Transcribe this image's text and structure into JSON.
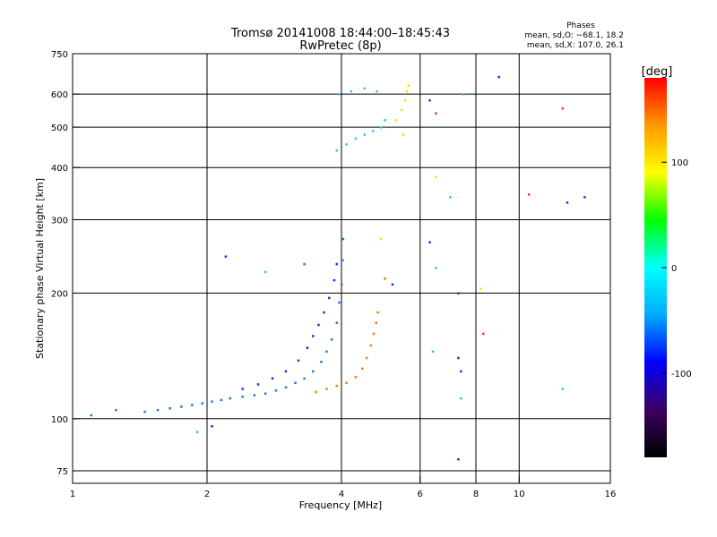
{
  "chart_data": {
    "type": "scatter",
    "title": "Tromsø 20141008 18:44:00–18:45:43",
    "subtitle": "RwPretec (8p)",
    "xlabel": "Frequency [MHz]",
    "ylabel": "Stationary phase Virtual Height [km]",
    "x_scale": "log2",
    "y_scale": "log",
    "xlim": [
      1,
      16
    ],
    "ylim": [
      70,
      750
    ],
    "x_ticks": [
      1,
      2,
      4,
      6,
      8,
      10,
      16
    ],
    "y_ticks": [
      75,
      100,
      200,
      300,
      400,
      500,
      600,
      750
    ],
    "grid": true,
    "stats_header": "Phases",
    "stats_lines": [
      "mean, sd,O: −68.1, 18.2",
      "mean, sd,X: 107.0, 26.1"
    ],
    "colorbar": {
      "label": "[deg]",
      "range": [
        -180,
        180
      ],
      "ticks": [
        100,
        0,
        -100
      ],
      "colors": [
        "#000000",
        "#3c0060",
        "#0000ff",
        "#00aaff",
        "#00ffff",
        "#00ff00",
        "#ffff00",
        "#ff9900",
        "#ff0000"
      ]
    },
    "point_colors": {
      "O_dark": "#1a32d8",
      "O_mid": "#1e78e8",
      "O_light": "#2cc4ee",
      "X_orange": "#ff7a00",
      "X_red": "#e8401a",
      "X_yellow": "#e6e600"
    },
    "traces": [
      {
        "name": "O-mode lower trace",
        "color_key": "O_mid",
        "points": [
          [
            1.45,
            104
          ],
          [
            1.55,
            105
          ],
          [
            1.65,
            106
          ],
          [
            1.75,
            107
          ],
          [
            1.85,
            108
          ],
          [
            1.95,
            109
          ],
          [
            2.05,
            110
          ],
          [
            2.15,
            111
          ],
          [
            2.25,
            112
          ],
          [
            2.4,
            113
          ],
          [
            2.55,
            114
          ],
          [
            2.7,
            115
          ],
          [
            2.85,
            117
          ],
          [
            3.0,
            119
          ],
          [
            3.15,
            122
          ],
          [
            3.3,
            125
          ],
          [
            3.45,
            130
          ],
          [
            3.6,
            137
          ],
          [
            3.7,
            145
          ],
          [
            3.8,
            155
          ],
          [
            3.9,
            170
          ],
          [
            3.95,
            190
          ],
          [
            4.0,
            210
          ],
          [
            4.02,
            240
          ],
          [
            4.03,
            270
          ]
        ]
      },
      {
        "name": "O-mode upper trace",
        "color_key": "O_dark",
        "points": [
          [
            2.4,
            118
          ],
          [
            2.6,
            121
          ],
          [
            2.8,
            125
          ],
          [
            3.0,
            130
          ],
          [
            3.2,
            138
          ],
          [
            3.35,
            148
          ],
          [
            3.45,
            158
          ],
          [
            3.55,
            168
          ],
          [
            3.65,
            180
          ],
          [
            3.75,
            195
          ],
          [
            3.85,
            215
          ],
          [
            3.9,
            235
          ]
        ]
      },
      {
        "name": "X-mode trace",
        "color_key": "X_orange",
        "points": [
          [
            3.5,
            116
          ],
          [
            3.7,
            118
          ],
          [
            3.9,
            120
          ],
          [
            4.1,
            122
          ],
          [
            4.3,
            126
          ],
          [
            4.45,
            132
          ],
          [
            4.55,
            140
          ],
          [
            4.65,
            150
          ],
          [
            4.72,
            160
          ],
          [
            4.78,
            170
          ],
          [
            4.82,
            180
          ]
        ]
      },
      {
        "name": "F2 O-mode",
        "color_key": "O_light",
        "points": [
          [
            3.9,
            440
          ],
          [
            4.1,
            455
          ],
          [
            4.3,
            470
          ],
          [
            4.5,
            480
          ],
          [
            4.7,
            490
          ],
          [
            4.9,
            500
          ],
          [
            5.0,
            520
          ],
          [
            3.95,
            600
          ],
          [
            4.2,
            610
          ],
          [
            4.5,
            620
          ],
          [
            4.8,
            610
          ]
        ]
      },
      {
        "name": "F2 X-mode",
        "color_key": "X_yellow",
        "points": [
          [
            5.3,
            520
          ],
          [
            5.45,
            550
          ],
          [
            5.55,
            580
          ],
          [
            5.6,
            610
          ],
          [
            5.65,
            630
          ],
          [
            5.5,
            480
          ]
        ]
      }
    ],
    "scatter_points": [
      {
        "x": 6.3,
        "y": 580,
        "color_key": "O_dark"
      },
      {
        "x": 6.5,
        "y": 540,
        "color_key": "X_red"
      },
      {
        "x": 7.5,
        "y": 600,
        "color_key": "O_light"
      },
      {
        "x": 9.0,
        "y": 660,
        "color_key": "O_dark"
      },
      {
        "x": 12.5,
        "y": 555,
        "color_key": "X_red"
      },
      {
        "x": 6.5,
        "y": 380,
        "color_key": "X_yellow"
      },
      {
        "x": 7.0,
        "y": 340,
        "color_key": "O_light"
      },
      {
        "x": 10.5,
        "y": 345,
        "color_key": "X_red"
      },
      {
        "x": 12.8,
        "y": 330,
        "color_key": "O_dark"
      },
      {
        "x": 14.0,
        "y": 340,
        "color_key": "O_dark"
      },
      {
        "x": 6.3,
        "y": 265,
        "color_key": "O_dark"
      },
      {
        "x": 6.5,
        "y": 230,
        "color_key": "O_light"
      },
      {
        "x": 7.3,
        "y": 200,
        "color_key": "O_dark"
      },
      {
        "x": 8.2,
        "y": 205,
        "color_key": "X_yellow"
      },
      {
        "x": 8.3,
        "y": 160,
        "color_key": "X_red"
      },
      {
        "x": 6.4,
        "y": 145,
        "color_key": "O_light"
      },
      {
        "x": 7.3,
        "y": 140,
        "color_key": "O_dark"
      },
      {
        "x": 7.4,
        "y": 130,
        "color_key": "O_dark"
      },
      {
        "x": 7.4,
        "y": 112,
        "color_key": "O_light"
      },
      {
        "x": 7.3,
        "y": 80,
        "color_key": "O_dark"
      },
      {
        "x": 12.5,
        "y": 118,
        "color_key": "O_light"
      },
      {
        "x": 2.2,
        "y": 245,
        "color_key": "O_dark"
      },
      {
        "x": 2.7,
        "y": 225,
        "color_key": "O_light"
      },
      {
        "x": 1.9,
        "y": 93,
        "color_key": "O_light"
      },
      {
        "x": 1.1,
        "y": 102,
        "color_key": "O_mid"
      },
      {
        "x": 1.25,
        "y": 105,
        "color_key": "O_mid"
      },
      {
        "x": 2.05,
        "y": 96,
        "color_key": "O_dark"
      },
      {
        "x": 3.3,
        "y": 235,
        "color_key": "O_mid"
      },
      {
        "x": 4.9,
        "y": 270,
        "color_key": "X_yellow"
      },
      {
        "x": 5.2,
        "y": 210,
        "color_key": "O_dark"
      },
      {
        "x": 5.0,
        "y": 217,
        "color_key": "X_orange"
      }
    ]
  }
}
